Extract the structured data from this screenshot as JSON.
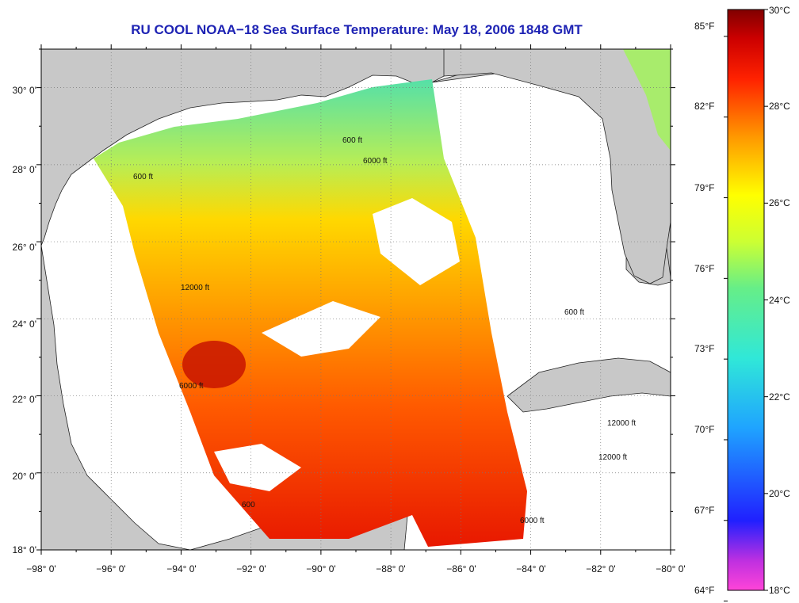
{
  "title": "RU COOL  NOAA−18  Sea Surface Temperature:  May 18, 2006 1848 GMT",
  "map": {
    "extent": {
      "lon": [
        -98,
        -80
      ],
      "lat": [
        18,
        31
      ]
    },
    "lon_ticks": [
      "−98° 0'",
      "−96° 0'",
      "−94° 0'",
      "−92° 0'",
      "−90° 0'",
      "−88° 0'",
      "−86° 0'",
      "−84° 0'",
      "−82° 0'",
      "−80° 0'"
    ],
    "lat_ticks": [
      "18° 0'",
      "20° 0'",
      "22° 0'",
      "24° 0'",
      "26° 0'",
      "28° 0'",
      "30° 0'"
    ],
    "grid": "dotted",
    "colors": {
      "land": "#c8c8c8",
      "cloud_or_nodata": "#ffffff",
      "title": "#1e23b4"
    },
    "contour_labels": [
      "600 ft",
      "6000 ft",
      "12000 ft"
    ],
    "contour_label_text": {
      "c600": "600 ft",
      "c6000": "6000 ft",
      "c12000": "12000 ft",
      "c600short": "600"
    }
  },
  "colorbar": {
    "celsius": [
      "30°C",
      "28°C",
      "26°C",
      "24°C",
      "22°C",
      "20°C",
      "18°C"
    ],
    "fahrenheit": [
      "85°F",
      "82°F",
      "79°F",
      "76°F",
      "73°F",
      "70°F",
      "67°F",
      "64°F"
    ],
    "range_c": [
      18,
      30
    ],
    "colors": [
      "#ff44d8",
      "#a028d8",
      "#2020ff",
      "#1fa4ff",
      "#30e8d8",
      "#66ee88",
      "#ccff33",
      "#ffff00",
      "#ff9900",
      "#ff2200",
      "#cc0000",
      "#800000"
    ]
  }
}
